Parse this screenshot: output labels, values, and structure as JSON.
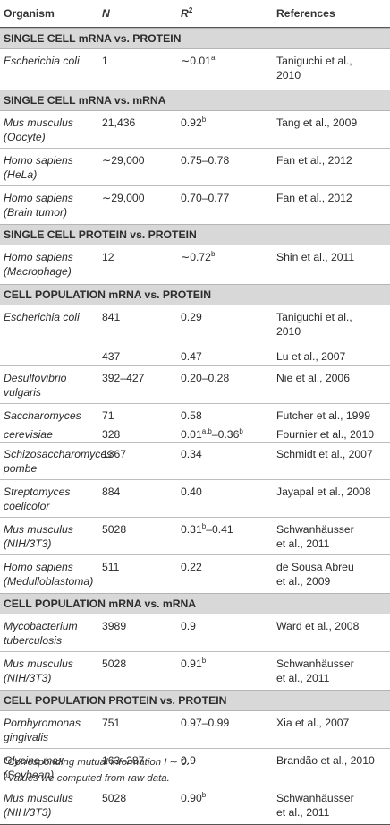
{
  "headers": {
    "organism": "Organism",
    "n": "N",
    "r2_main": "R",
    "r2_sup": "2",
    "references": "References"
  },
  "sections": [
    {
      "title": "SINGLE CELL mRNA vs. PROTEIN",
      "rows": [
        {
          "org1": "Escherichia coli",
          "org2": "",
          "n": "1",
          "r_main": "∼0.01",
          "r_sup": "a",
          "r_tail": "",
          "ref1": "Taniguchi et al.,",
          "ref2": "2010",
          "h": 45,
          "sep": false
        }
      ]
    },
    {
      "title": "SINGLE CELL mRNA vs. mRNA",
      "rows": [
        {
          "org1": "Mus musculus",
          "org2": "(Oocyte)",
          "n": "21,436",
          "r_main": "0.92",
          "r_sup": "b",
          "r_tail": "",
          "ref1": "Tang et al., 2009",
          "ref2": "",
          "h": 42,
          "sep": true
        },
        {
          "org1": "Homo sapiens",
          "org2": "(HeLa)",
          "n": "∼29,000",
          "r_main": "0.75–0.78",
          "r_sup": "",
          "r_tail": "",
          "ref1": "Fan et al., 2012",
          "ref2": "",
          "h": 42,
          "sep": true
        },
        {
          "org1": "Homo sapiens",
          "org2": "(Brain tumor)",
          "n": "∼29,000",
          "r_main": "0.70–0.77",
          "r_sup": "",
          "r_tail": "",
          "ref1": "Fan et al., 2012",
          "ref2": "",
          "h": 42,
          "sep": false
        }
      ]
    },
    {
      "title": "SINGLE CELL PROTEIN vs. PROTEIN",
      "rows": [
        {
          "org1": "Homo sapiens",
          "org2": "(Macrophage)",
          "n": "12",
          "r_main": "∼0.72",
          "r_sup": "b",
          "r_tail": "",
          "ref1": "Shin et al., 2011",
          "ref2": "",
          "h": 43,
          "sep": false
        }
      ]
    },
    {
      "title": "CELL POPULATION mRNA vs. PROTEIN",
      "rows": [
        {
          "org1": "Escherichia coli",
          "org2": "",
          "n": "841",
          "r_main": "0.29",
          "r_sup": "",
          "r_tail": "",
          "ref1": "Taniguchi et al.,",
          "ref2": "2010",
          "h": 44,
          "sep": false
        },
        {
          "org1": "",
          "org2": "",
          "n": "437",
          "r_main": "0.47",
          "r_sup": "",
          "r_tail": "",
          "ref1": "Lu et al., 2007",
          "ref2": "",
          "h": 24,
          "sep": true
        },
        {
          "org1": "Desulfovibrio",
          "org2": "vulgaris",
          "n": "392–427",
          "r_main": "0.20–0.28",
          "r_sup": "",
          "r_tail": "",
          "ref1": "Nie et al., 2006",
          "ref2": "",
          "h": 42,
          "sep": true
        },
        {
          "org1": "Saccharomyces",
          "org2": "",
          "n": "71",
          "r_main": "0.58",
          "r_sup": "",
          "r_tail": "",
          "ref1": "Futcher et al., 1999",
          "ref2": "",
          "h": 21,
          "sep": false
        },
        {
          "org1": "cerevisiae",
          "org2": "",
          "n": "328",
          "r_main": "0.01",
          "r_sup": "a,b",
          "r_tail": "–0.36",
          "r_tail_sup": "b",
          "ref1": "Fournier et al., 2010",
          "ref2": "",
          "h": 22,
          "sep": true
        },
        {
          "org1": "Schizosaccharomyces",
          "org2": "pombe",
          "n": "1367",
          "r_main": "0.34",
          "r_sup": "",
          "r_tail": "",
          "ref1": "Schmidt et al., 2007",
          "ref2": "",
          "h": 42,
          "sep": true
        },
        {
          "org1": "Streptomyces",
          "org2": "coelicolor",
          "n": "884",
          "r_main": "0.40",
          "r_sup": "",
          "r_tail": "",
          "ref1": "Jayapal et al., 2008",
          "ref2": "",
          "h": 42,
          "sep": true
        },
        {
          "org1": "Mus musculus",
          "org2": "(NIH/3T3)",
          "n": "5028",
          "r_main": "0.31",
          "r_sup": "b",
          "r_tail": "–0.41",
          "ref1": "Schwanhäusser",
          "ref2": "et al., 2011",
          "h": 42,
          "sep": true
        },
        {
          "org1": "Homo sapiens",
          "org2": "(Medulloblastoma)",
          "n": "511",
          "r_main": "0.22",
          "r_sup": "",
          "r_tail": "",
          "ref1": "de Sousa Abreu",
          "ref2": "et al., 2009",
          "h": 42,
          "sep": false
        }
      ]
    },
    {
      "title": "CELL POPULATION mRNA vs. mRNA",
      "rows": [
        {
          "org1": "Mycobacterium",
          "org2": "tuberculosis",
          "n": "3989",
          "r_main": "0.9",
          "r_sup": "",
          "r_tail": "",
          "ref1": "Ward et al., 2008",
          "ref2": "",
          "h": 42,
          "sep": true
        },
        {
          "org1": "Mus musculus",
          "org2": "(NIH/3T3)",
          "n": "5028",
          "r_main": "0.91",
          "r_sup": "b",
          "r_tail": "",
          "ref1": "Schwanhäusser",
          "ref2": "et al., 2011",
          "h": 42,
          "sep": false
        }
      ]
    },
    {
      "title": "CELL POPULATION PROTEIN vs. PROTEIN",
      "rows": [
        {
          "org1": "Porphyromonas",
          "org2": "gingivalis",
          "n": "751",
          "r_main": "0.97–0.99",
          "r_sup": "",
          "r_tail": "",
          "ref1": "Xia et al., 2007",
          "ref2": "",
          "h": 42,
          "sep": true
        },
        {
          "org1": "Glycine max",
          "org2": "(Soybean)",
          "n": "163–287",
          "r_main": "0.9",
          "r_sup": "",
          "r_tail": "",
          "ref1": "Brandão et al., 2010",
          "ref2": "",
          "h": 42,
          "sep": true
        },
        {
          "org1": "Mus musculus",
          "org2": "(NIH/3T3)",
          "n": "5028",
          "r_main": "0.90",
          "r_sup": "b",
          "r_tail": "",
          "ref1": "Schwanhäusser",
          "ref2": "et al., 2011",
          "h": 42,
          "sep": false
        }
      ]
    }
  ],
  "notes": [
    {
      "sup": "a",
      "text": "Corresponding mutual information I ∼ 0."
    },
    {
      "sup": "b",
      "text": "Values we computed from raw data."
    }
  ]
}
